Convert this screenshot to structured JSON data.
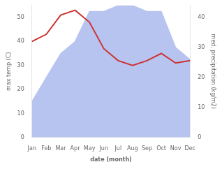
{
  "chart_data": {
    "type": "line",
    "xlabel": "date (month)",
    "ylabel": "max temp (C)",
    "y2label": "med. precipitation (kg/m2)",
    "categories": [
      "Jan",
      "Feb",
      "Mar",
      "Apr",
      "May",
      "Jun",
      "Jul",
      "Aug",
      "Sep",
      "Oct",
      "Nov",
      "Dec"
    ],
    "series": [
      {
        "type": "area",
        "axis": "y2",
        "color": "#b8c4f0",
        "values": [
          12,
          20,
          28,
          32,
          42,
          42,
          44,
          44,
          42,
          42,
          30,
          26
        ]
      },
      {
        "type": "line",
        "axis": "y",
        "color": "#cc3333",
        "values": [
          40,
          43,
          51,
          53,
          48,
          37,
          32,
          30,
          32,
          35,
          31,
          32
        ]
      }
    ],
    "ylim": [
      0,
      55
    ],
    "yticks": [
      0,
      10,
      20,
      30,
      40,
      50
    ],
    "y2lim": [
      0,
      44
    ],
    "y2ticks": [
      0,
      10,
      20,
      30,
      40
    ],
    "grid": false
  }
}
